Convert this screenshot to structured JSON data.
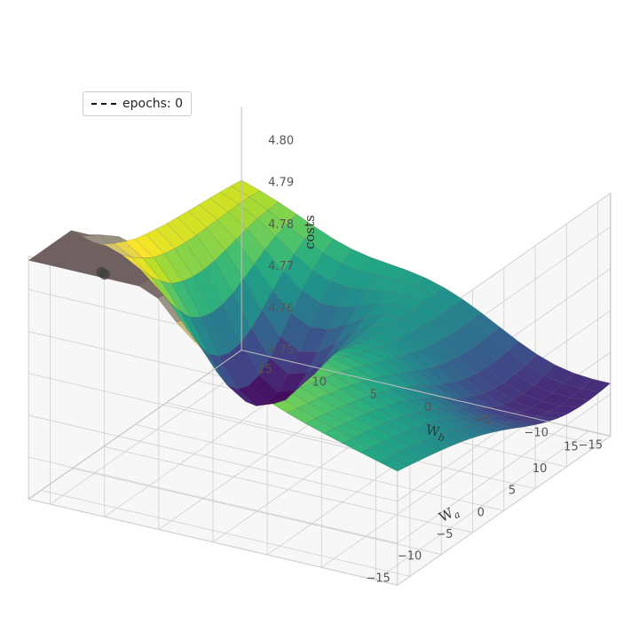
{
  "chart": {
    "type": "3d-surface",
    "colormap": "viridis",
    "colormap_samples": [
      "#440154",
      "#482475",
      "#414487",
      "#355f8d",
      "#2a788e",
      "#21918c",
      "#22a884",
      "#44bf70",
      "#7ad151",
      "#bddf26",
      "#fde725",
      "#d8c66a",
      "#b3a88a",
      "#90897f",
      "#706060"
    ],
    "background_color": "#ffffff",
    "pane_color": "#f7f7f7",
    "grid_color": "#cfcfcf",
    "wireframe_color": "#808080",
    "wireframe_alpha": 0.35,
    "legend": {
      "label": "epochs: 0",
      "marker": "dashed-line",
      "marker_color": "#111111",
      "border_color": "#cccccc",
      "fontsize": 14
    },
    "scatter": {
      "points": [
        [
          12,
          -14,
          4.806
        ],
        [
          12,
          -13.5,
          4.805
        ]
      ],
      "color": "#404040",
      "size": 10
    },
    "axes": {
      "wa": {
        "label": "Wₐ",
        "ticks": [
          -15,
          -10,
          -5,
          0,
          5,
          10,
          15
        ],
        "lim": [
          -17,
          17
        ]
      },
      "wb": {
        "label": "W_b",
        "ticks": [
          -15,
          -10,
          -5,
          0,
          5,
          10,
          15
        ],
        "lim": [
          -17,
          17
        ]
      },
      "costs": {
        "label": "costs",
        "ticks": [
          4.75,
          4.76,
          4.77,
          4.78,
          4.79,
          4.8
        ],
        "lim": [
          4.75,
          4.808
        ]
      }
    },
    "tick_fontsize": 13,
    "label_fontsize": 15,
    "n_grid": 20,
    "view": {
      "elev_deg": 25,
      "azim_deg": -60
    }
  }
}
